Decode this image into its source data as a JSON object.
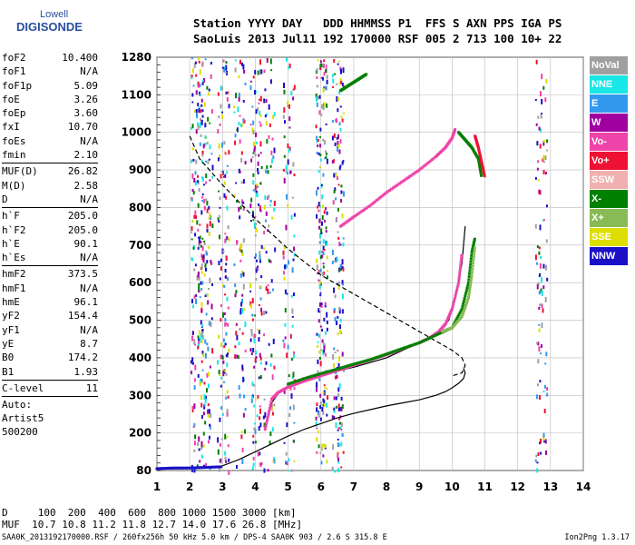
{
  "logo": {
    "line1": "Lowell",
    "line2": "DIGISONDE"
  },
  "header": {
    "row1": "Station YYYY DAY   DDD HHMMSS P1  FFS S AXN PPS IGA PS",
    "row2": "SaoLuis 2013 Jul11 192 170000 RSF 005 2 713 100 10+ 22"
  },
  "params": [
    [
      {
        "k": "foF2",
        "v": "10.400"
      },
      {
        "k": "foF1",
        "v": "N/A"
      },
      {
        "k": "foF1p",
        "v": "5.09"
      },
      {
        "k": "foE",
        "v": "3.26"
      },
      {
        "k": "foEp",
        "v": "3.60"
      },
      {
        "k": "fxI",
        "v": "10.70"
      },
      {
        "k": "foEs",
        "v": "N/A"
      },
      {
        "k": "fmin",
        "v": "2.10"
      }
    ],
    [
      {
        "k": "MUF(D)",
        "v": "26.82"
      },
      {
        "k": "M(D)",
        "v": "2.58"
      },
      {
        "k": "D",
        "v": "N/A"
      }
    ],
    [
      {
        "k": "h`F",
        "v": "205.0"
      },
      {
        "k": "h`F2",
        "v": "205.0"
      },
      {
        "k": "h`E",
        "v": "90.1"
      },
      {
        "k": "h`Es",
        "v": "N/A"
      }
    ],
    [
      {
        "k": "hmF2",
        "v": "373.5"
      },
      {
        "k": "hmF1",
        "v": "N/A"
      },
      {
        "k": "hmE",
        "v": "96.1"
      },
      {
        "k": "yF2",
        "v": "154.4"
      },
      {
        "k": "yF1",
        "v": "N/A"
      },
      {
        "k": "yE",
        "v": "8.7"
      },
      {
        "k": "B0",
        "v": "174.2"
      },
      {
        "k": "B1",
        "v": "1.93"
      }
    ],
    [
      {
        "k": "C-level",
        "v": "11"
      }
    ]
  ],
  "auto": {
    "line1": "Auto:",
    "line2": "Artist5",
    "line3": "500200"
  },
  "legend": [
    {
      "label": "NoVal",
      "color": "#a0a0a0"
    },
    {
      "label": "NNE",
      "color": "#19e6e6"
    },
    {
      "label": "E",
      "color": "#3399ee"
    },
    {
      "label": "W",
      "color": "#a000a0"
    },
    {
      "label": "Vo-",
      "color": "#ee44aa"
    },
    {
      "label": "Vo+",
      "color": "#ee1133"
    },
    {
      "label": "SSW",
      "color": "#f0b0b0"
    },
    {
      "label": "X-",
      "color": "#008000"
    },
    {
      "label": "X+",
      "color": "#88bb55"
    },
    {
      "label": "SSE",
      "color": "#dddd00"
    },
    {
      "label": "NNW",
      "color": "#1a10c8"
    }
  ],
  "muf_table": {
    "row1": "D     100  200  400  600  800 1000 1500 3000 [km]",
    "row2": "MUF  10.7 10.8 11.2 11.8 12.7 14.0 17.6 26.8 [MHz]"
  },
  "footer": {
    "left": "SAA0K_2013192170000.RSF / 260fx256h 50 kHz 5.0 km / DPS-4 SAA0K 903 / 2.6 S 315.8 E",
    "right": "Ion2Png 1.3.17"
  },
  "chart_data": {
    "type": "scatter",
    "title": "",
    "xlabel": "",
    "ylabel": "",
    "xlim": [
      1,
      14
    ],
    "ylim_ticks": [
      80,
      200,
      300,
      400,
      500,
      600,
      700,
      800,
      900,
      1000,
      1100,
      1280
    ],
    "x_ticks": [
      1,
      2,
      3,
      4,
      5,
      6,
      7,
      8,
      9,
      10,
      11,
      12,
      13,
      14
    ],
    "y_ticks": [
      80,
      200,
      300,
      400,
      500,
      600,
      700,
      800,
      900,
      1000,
      1100,
      1280
    ],
    "grid": true,
    "legend_position": "right",
    "series": [
      {
        "color": "#000000",
        "style": "solid",
        "x": [
          1.0,
          2.0,
          2.5,
          3.0,
          3.5,
          4.0,
          4.5,
          5.0,
          5.5,
          6.0,
          6.5,
          7.0,
          7.5,
          8.0,
          8.5,
          9.0,
          9.5,
          9.8,
          10.0,
          10.2,
          10.35,
          10.4,
          10.35
        ],
        "y": [
          85,
          86,
          88,
          95,
          115,
          140,
          165,
          190,
          210,
          225,
          240,
          252,
          262,
          272,
          280,
          288,
          300,
          310,
          320,
          332,
          345,
          360,
          372
        ]
      },
      {
        "color": "#000000",
        "style": "dashed",
        "x": [
          2.0,
          2.3,
          3.0,
          4.0,
          5.0,
          6.0,
          7.0,
          8.0,
          9.0,
          9.6,
          10.0,
          10.3,
          10.4,
          10.3,
          10.0
        ],
        "y": [
          990,
          930,
          860,
          770,
          690,
          620,
          570,
          520,
          470,
          440,
          420,
          400,
          380,
          360,
          352
        ]
      },
      {
        "color": "#000000",
        "style": "solid",
        "x": [
          4.3,
          4.5,
          4.7,
          5.0,
          6.0,
          7.0,
          8.0,
          8.5,
          9.0,
          9.3,
          9.6,
          9.9,
          10.1,
          10.3,
          10.4
        ],
        "y": [
          210,
          280,
          305,
          320,
          355,
          375,
          400,
          420,
          440,
          455,
          470,
          500,
          560,
          650,
          750
        ]
      },
      {
        "color": "#ee44aa",
        "style": "points",
        "x": [
          4.3,
          4.5,
          4.7,
          5.0,
          5.5,
          6.0,
          6.5,
          7.0,
          7.5,
          8.0,
          8.5,
          9.0,
          9.3,
          9.6,
          9.8,
          10.0,
          10.2,
          10.3
        ],
        "y": [
          210,
          290,
          308,
          322,
          338,
          352,
          366,
          380,
          394,
          408,
          424,
          440,
          452,
          470,
          490,
          530,
          600,
          680
        ]
      },
      {
        "color": "#008000",
        "style": "points",
        "x": [
          5.0,
          5.5,
          6.0,
          6.5,
          7.0,
          7.5,
          8.0,
          8.5,
          9.0,
          9.5,
          10.0,
          10.3,
          10.5,
          10.6,
          10.7
        ],
        "y": [
          330,
          345,
          358,
          370,
          383,
          395,
          410,
          425,
          440,
          460,
          480,
          530,
          600,
          680,
          720
        ]
      },
      {
        "color": "#88bb55",
        "style": "points",
        "x": [
          9.7,
          10.0,
          10.3,
          10.5,
          10.6,
          10.7
        ],
        "y": [
          470,
          480,
          510,
          560,
          620,
          700
        ]
      },
      {
        "color": "#ee44aa",
        "style": "points",
        "x": [
          6.6,
          7.0,
          7.5,
          8.0,
          8.5,
          9.0,
          9.5,
          9.8,
          10.0,
          10.1
        ],
        "y": [
          750,
          775,
          805,
          840,
          870,
          900,
          935,
          960,
          985,
          1010
        ]
      },
      {
        "color": "#008000",
        "style": "points",
        "x": [
          10.2,
          10.4,
          10.6,
          10.8,
          10.9
        ],
        "y": [
          1000,
          980,
          960,
          930,
          880
        ]
      },
      {
        "color": "#ee1133",
        "style": "points",
        "x": [
          10.7,
          10.8,
          10.9,
          11.0
        ],
        "y": [
          990,
          960,
          920,
          880
        ]
      },
      {
        "color": "#008000",
        "style": "points",
        "x": [
          6.6,
          6.8,
          7.0,
          7.2,
          7.4
        ],
        "y": [
          1120,
          1140,
          1160,
          1180,
          1200
        ]
      },
      {
        "color": "#1a10c8",
        "style": "points",
        "x": [
          1.0,
          1.5,
          2.0,
          2.5,
          3.0
        ],
        "y": [
          86,
          88,
          88,
          90,
          92
        ]
      }
    ]
  }
}
